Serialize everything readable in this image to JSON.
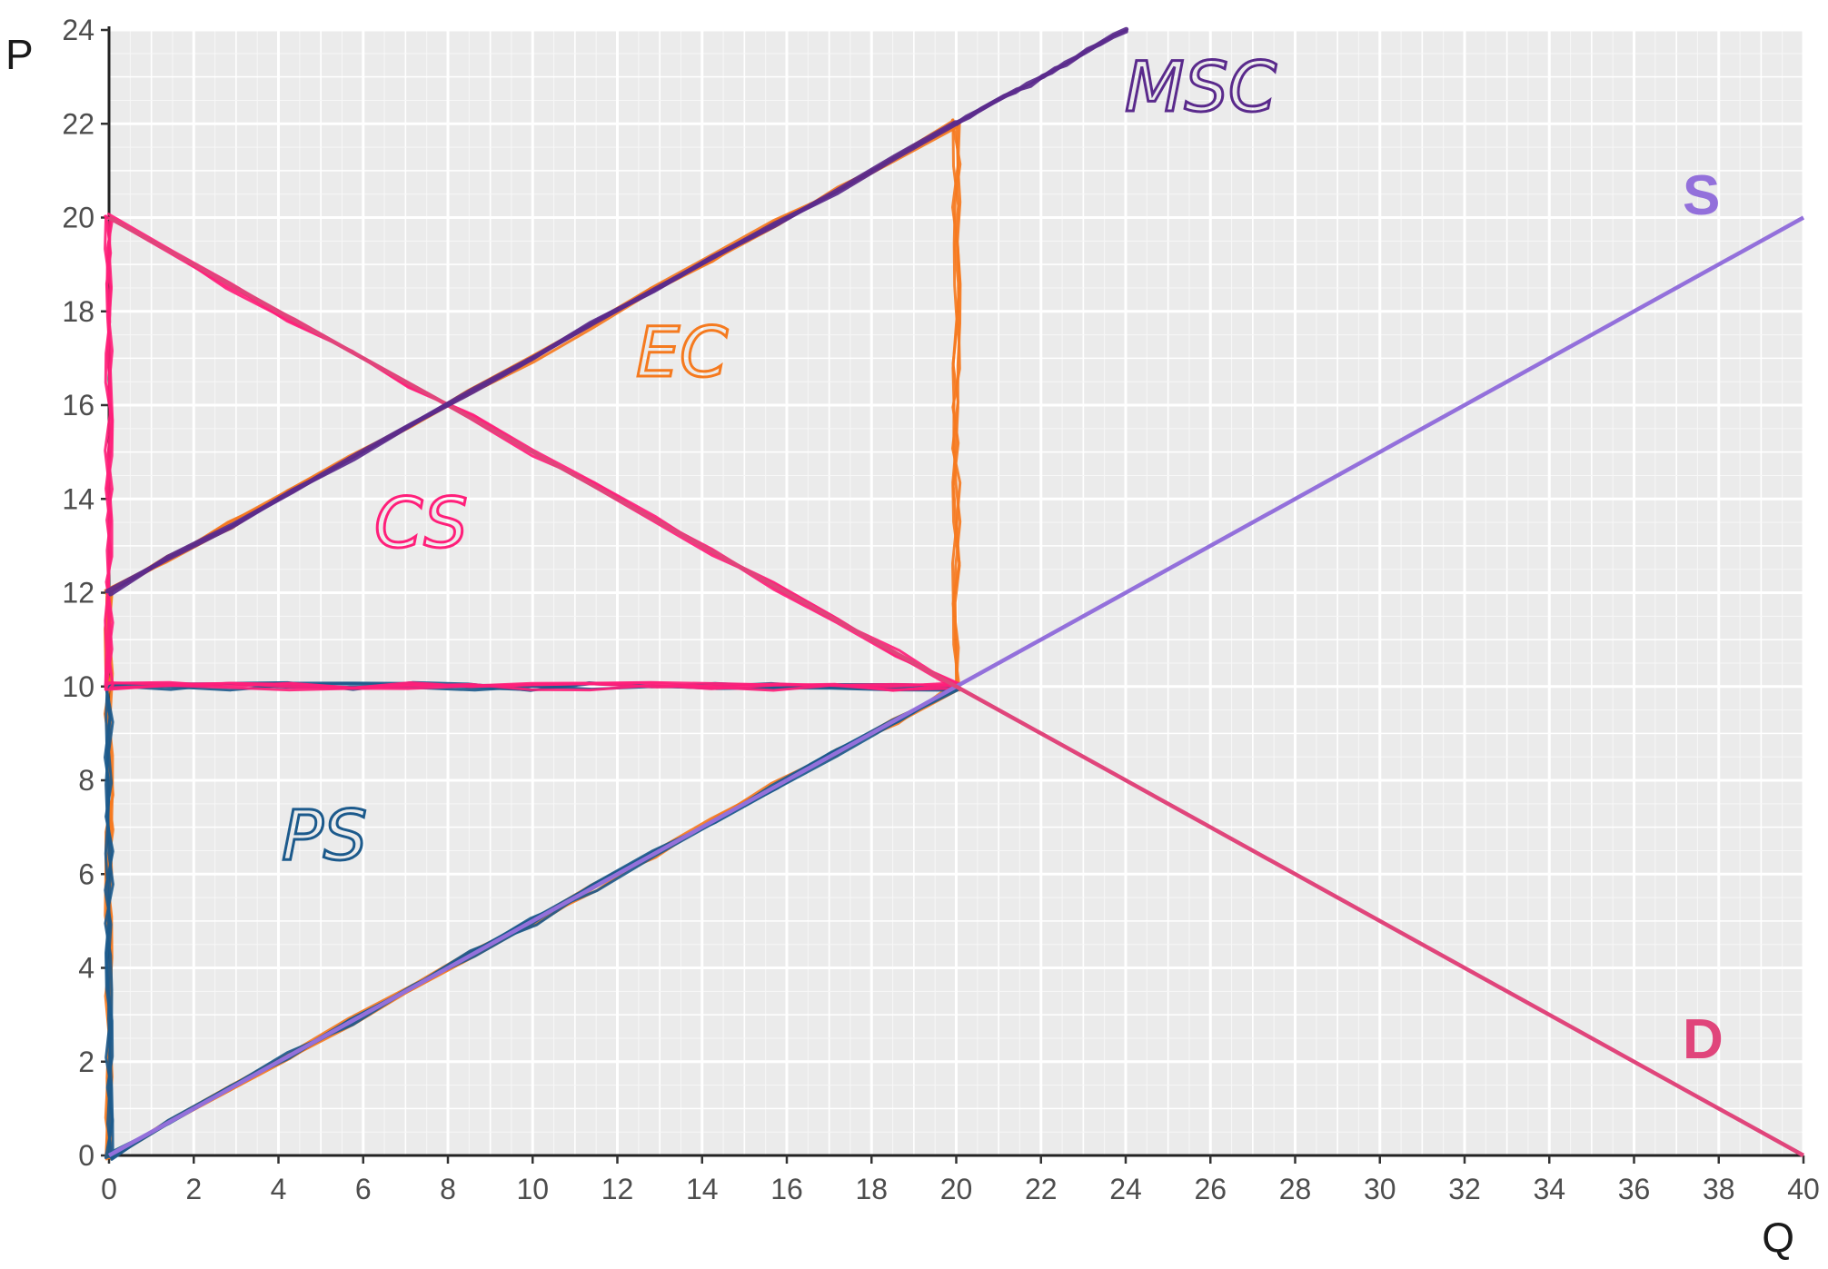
{
  "colors": {
    "panel_bg": "#ebebeb",
    "grid_major": "#ffffff",
    "grid_minor": "#f7f7f7",
    "supply": "#9370db",
    "demand": "#e0457b",
    "msc": "#5a2a8c",
    "cs": "#ff1f7a",
    "ps": "#1c5a8c",
    "ec": "#f57a1f"
  },
  "chart_data": {
    "type": "line",
    "title": "",
    "xlabel": "Q",
    "ylabel": "P",
    "xlim": [
      0,
      40
    ],
    "ylim": [
      0,
      24
    ],
    "grid": true,
    "x_ticks": [
      0,
      2,
      4,
      6,
      8,
      10,
      12,
      14,
      16,
      18,
      20,
      22,
      24,
      26,
      28,
      30,
      32,
      34,
      36,
      38,
      40
    ],
    "y_ticks": [
      0,
      2,
      4,
      6,
      8,
      10,
      12,
      14,
      16,
      18,
      20,
      22,
      24
    ],
    "series": [
      {
        "name": "S",
        "color": "#9370db",
        "points": [
          [
            0,
            0
          ],
          [
            40,
            20
          ]
        ]
      },
      {
        "name": "D",
        "color": "#e0457b",
        "points": [
          [
            0,
            20
          ],
          [
            40,
            0
          ]
        ]
      },
      {
        "name": "MSC",
        "color": "#5a2a8c",
        "hand_drawn": true,
        "points": [
          [
            0,
            12
          ],
          [
            20,
            22
          ],
          [
            24,
            24
          ]
        ]
      }
    ],
    "shaded_regions": [
      {
        "label": "CS",
        "color": "#ff1f7a",
        "hand_drawn": true,
        "polygon": [
          [
            0,
            20
          ],
          [
            20,
            10
          ],
          [
            0,
            10
          ]
        ]
      },
      {
        "label": "PS",
        "color": "#1c5a8c",
        "hand_drawn": true,
        "polygon": [
          [
            0,
            10
          ],
          [
            20,
            10
          ],
          [
            0,
            0
          ]
        ]
      },
      {
        "label": "EC",
        "color": "#f57a1f",
        "hand_drawn": true,
        "polygon": [
          [
            0,
            12
          ],
          [
            20,
            22
          ],
          [
            20,
            10
          ],
          [
            0,
            0
          ]
        ]
      }
    ],
    "annotations": [
      {
        "text": "S",
        "color": "#9370db"
      },
      {
        "text": "D",
        "color": "#e0457b"
      },
      {
        "text": "MSC",
        "color": "#5a2a8c"
      },
      {
        "text": "CS",
        "color": "#ff1f7a"
      },
      {
        "text": "PS",
        "color": "#1c5a8c"
      },
      {
        "text": "EC",
        "color": "#f57a1f"
      }
    ]
  }
}
